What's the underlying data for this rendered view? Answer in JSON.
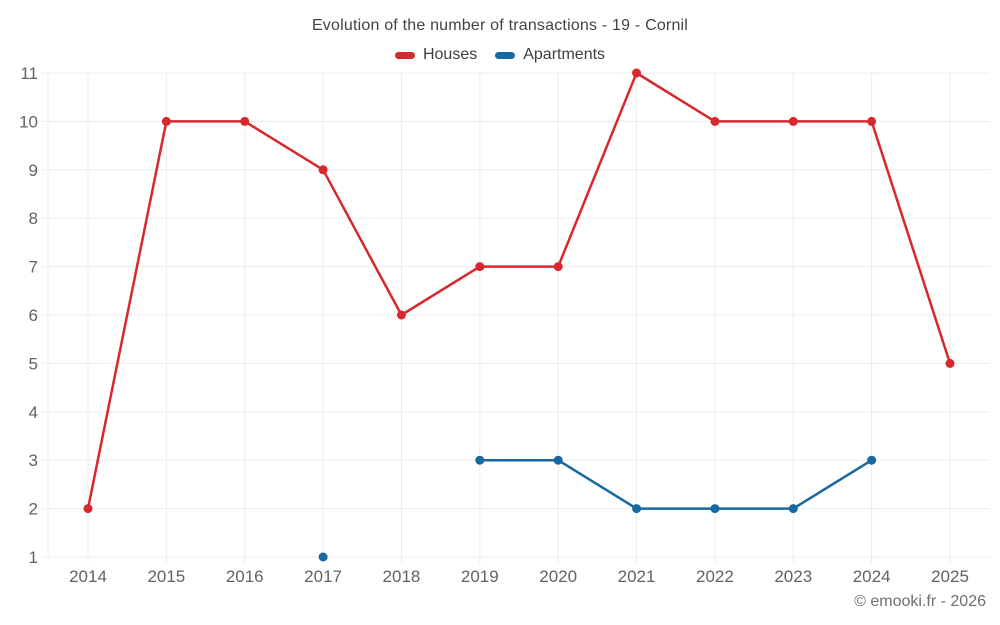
{
  "chart": {
    "title": "Evolution of the number of transactions - 19 - Cornil",
    "legend": [
      {
        "label": "Houses",
        "color": "#d7282d"
      },
      {
        "label": "Apartments",
        "color": "#1769a0"
      }
    ]
  },
  "chart_data": {
    "type": "line",
    "title": "Evolution of the number of transactions - 19 - Cornil",
    "x": [
      2014,
      2015,
      2016,
      2017,
      2018,
      2019,
      2020,
      2021,
      2022,
      2023,
      2024,
      2025
    ],
    "series": [
      {
        "name": "Houses",
        "color": "#d7282d",
        "values": [
          2,
          10,
          10,
          9,
          6,
          7,
          7,
          11,
          10,
          10,
          10,
          5
        ]
      },
      {
        "name": "Apartments",
        "color": "#1769a0",
        "values": [
          null,
          null,
          null,
          1,
          null,
          3,
          3,
          2,
          2,
          2,
          3,
          null
        ]
      }
    ],
    "ylim": [
      1,
      11
    ],
    "yticks": [
      1,
      2,
      3,
      4,
      5,
      6,
      7,
      8,
      9,
      10,
      11
    ],
    "xlabel": "",
    "ylabel": "",
    "grid": true,
    "legend_position": "top",
    "marker_radius": 4.5,
    "line_width": 2.5
  },
  "footer": {
    "copyright": "© emooki.fr - 2026"
  }
}
